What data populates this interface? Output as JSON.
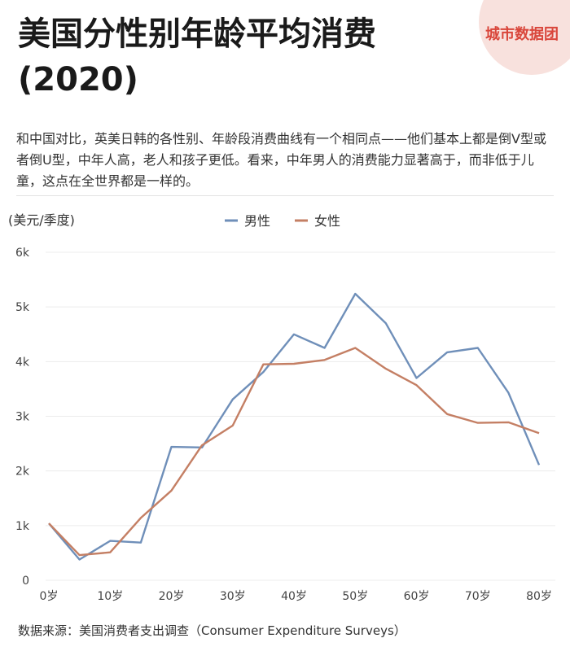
{
  "title": "美国分性别年龄平均消费(2020)",
  "brand": "城市数据团",
  "description": "和中国对比，英美日韩的各性别、年龄段消费曲线有一个相同点——他们基本上都是倒V型或者倒U型，中年人高，老人和孩子更低。看来，中年男人的消费能力显著高于，而非低于儿童，这点在全世界都是一样的。",
  "source": "数据来源：美国消费者支出调查（Consumer Expenditure Surveys）",
  "chart_data": {
    "type": "line",
    "ylabel": "(美元/季度)",
    "xlabel": "",
    "xlim": [
      0,
      80
    ],
    "ylim": [
      0,
      6000
    ],
    "x_ticks": [
      0,
      10,
      20,
      30,
      40,
      50,
      60,
      70,
      80
    ],
    "x_tick_labels": [
      "0岁",
      "10岁",
      "20岁",
      "30岁",
      "40岁",
      "50岁",
      "60岁",
      "70岁",
      "80岁"
    ],
    "y_ticks": [
      0,
      1000,
      2000,
      3000,
      4000,
      5000,
      6000
    ],
    "y_tick_labels": [
      "0",
      "1k",
      "2k",
      "3k",
      "4k",
      "5k",
      "6k"
    ],
    "legend_position": "top-center",
    "grid": true,
    "x": [
      0,
      5,
      10,
      15,
      20,
      25,
      30,
      35,
      40,
      45,
      50,
      55,
      60,
      65,
      70,
      75,
      80
    ],
    "series": [
      {
        "name": "男性",
        "color": "#6f8fb9",
        "values": [
          1040,
          380,
          720,
          690,
          2440,
          2430,
          3310,
          3810,
          4500,
          4250,
          5240,
          4700,
          3700,
          4170,
          4250,
          3430,
          2110
        ]
      },
      {
        "name": "女性",
        "color": "#c47f64",
        "values": [
          1040,
          460,
          510,
          1140,
          1640,
          2470,
          2830,
          3950,
          3960,
          4030,
          4250,
          3870,
          3570,
          3040,
          2880,
          2890,
          2690
        ]
      }
    ]
  }
}
